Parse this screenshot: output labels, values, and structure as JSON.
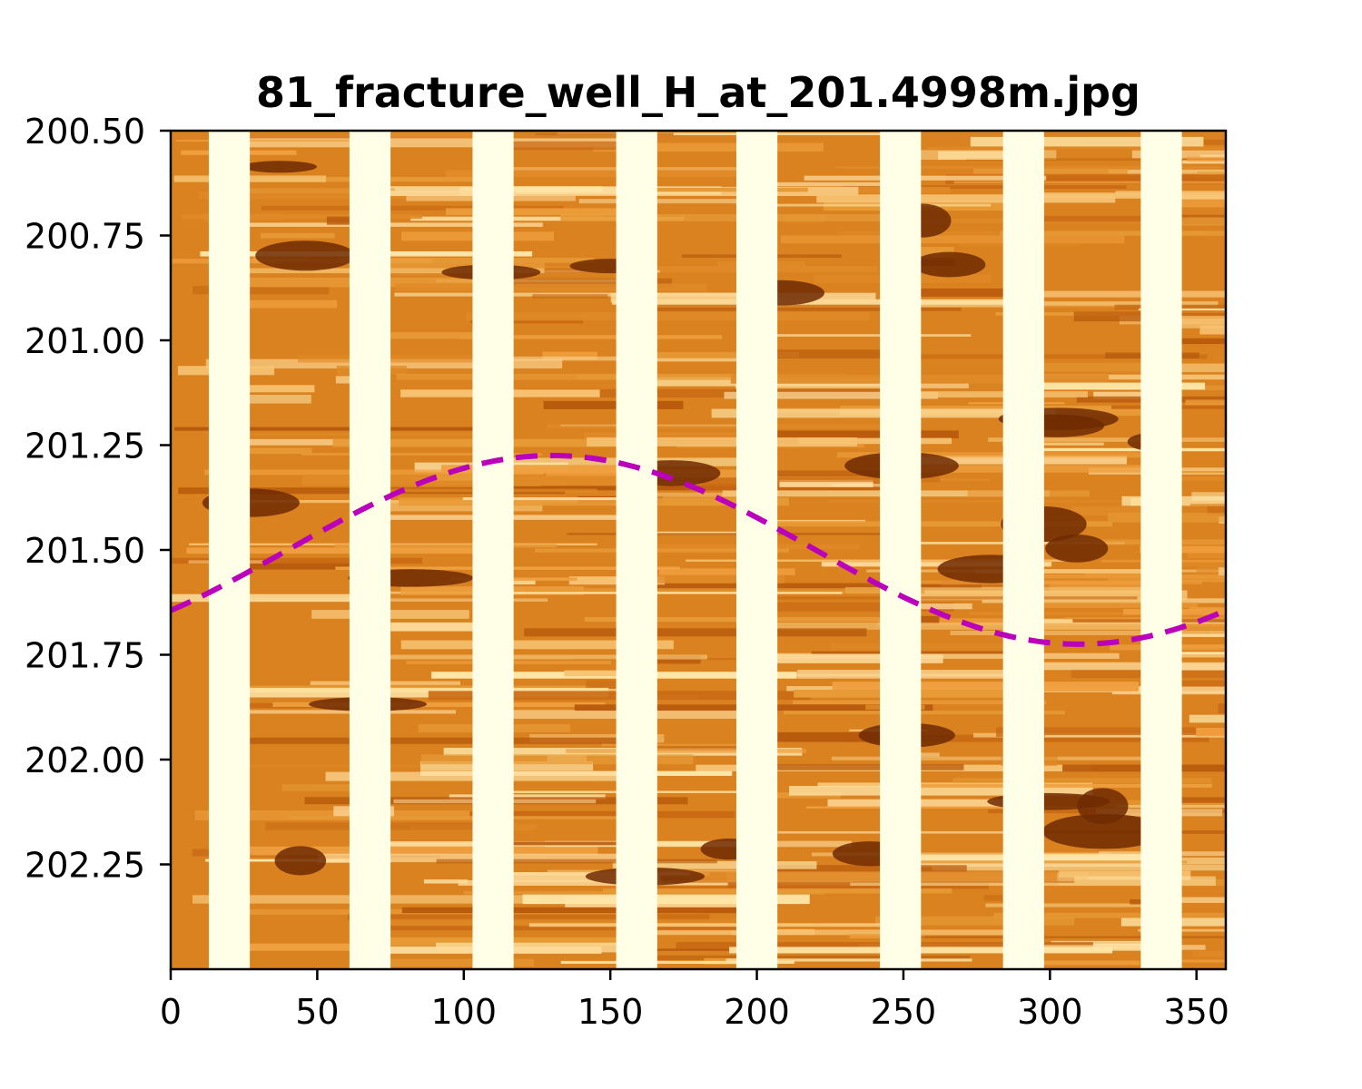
{
  "chart_data": {
    "type": "image-with-curve",
    "title": "81_fracture_well_H_at_201.4998m.jpg",
    "xlabel": "",
    "ylabel": "",
    "xlim": [
      0,
      360
    ],
    "ylim": [
      202.5,
      200.5
    ],
    "y_inverted": true,
    "x_ticks": [
      0,
      50,
      100,
      150,
      200,
      250,
      300,
      350
    ],
    "x_tick_labels": [
      "0",
      "50",
      "100",
      "150",
      "200",
      "250",
      "300",
      "350"
    ],
    "y_ticks": [
      200.5,
      200.75,
      201.0,
      201.25,
      201.5,
      201.75,
      202.0,
      202.25
    ],
    "y_tick_labels": [
      "200.50",
      "200.75",
      "201.00",
      "201.25",
      "201.50",
      "201.75",
      "202.00",
      "202.25"
    ],
    "grid": false,
    "background_image": {
      "description_colormap": "afmhot_r",
      "pad_gap_color": "#ffffe8",
      "pad_gaps_x_deg": [
        [
          13,
          27
        ],
        [
          61,
          75
        ],
        [
          103,
          117
        ],
        [
          152,
          166
        ],
        [
          193,
          207
        ],
        [
          242,
          256
        ],
        [
          284,
          298
        ],
        [
          331,
          345
        ]
      ]
    },
    "series": [
      {
        "kind": "sinusoid",
        "style": "dashed",
        "color": "#bb00bb",
        "center_depth": 201.4998,
        "amplitude": 0.225,
        "trough_azimuth_deg": 310,
        "peak_azimuth_deg": 130,
        "peak_depth": 201.275,
        "trough_depth": 201.725
      }
    ]
  }
}
